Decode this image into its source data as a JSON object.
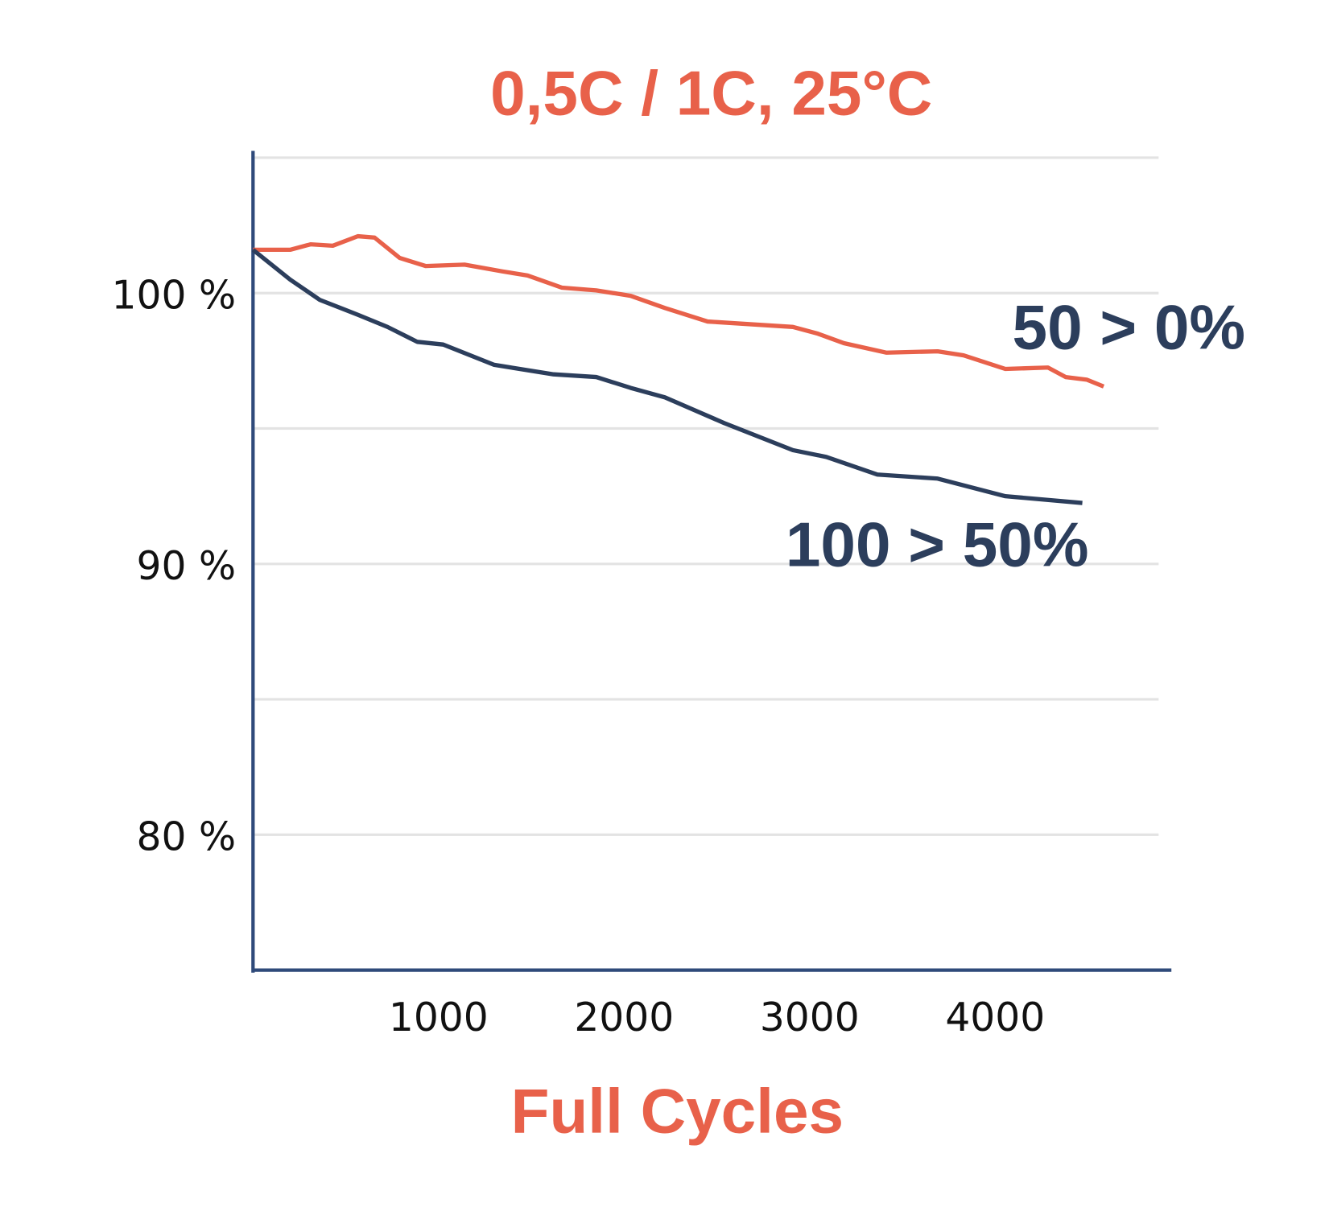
{
  "chart_data": {
    "type": "line",
    "title": "0,5C / 1C, 25°C",
    "x_label": "Full Cycles",
    "xlim": [
      0,
      4950
    ],
    "ylim": [
      75,
      105
    ],
    "xticks": [
      1000,
      2000,
      3000,
      4000
    ],
    "yticks": [
      {
        "value": 80,
        "label": "80 %"
      },
      {
        "value": 90,
        "label": "90 %"
      },
      {
        "value": 100,
        "label": "100 %"
      }
    ],
    "minor_yticks": [
      85,
      95,
      105
    ],
    "grid": true,
    "axis_color": "#2f4a7a",
    "series": [
      {
        "name": "50 > 0%",
        "color": "#e8614a",
        "x": [
          0,
          200,
          310,
          430,
          565,
          655,
          790,
          930,
          1140,
          1345,
          1480,
          1665,
          1850,
          2035,
          2220,
          2450,
          2680,
          2910,
          3045,
          3185,
          3415,
          3690,
          3830,
          4055,
          4285,
          4380,
          4495,
          4585
        ],
        "values": [
          101.6,
          101.6,
          101.8,
          101.75,
          102.1,
          102.05,
          101.3,
          101.0,
          101.05,
          100.8,
          100.65,
          100.2,
          100.1,
          99.9,
          99.45,
          98.95,
          98.85,
          98.75,
          98.5,
          98.15,
          97.8,
          97.85,
          97.7,
          97.2,
          97.25,
          96.9,
          96.8,
          96.55
        ]
      },
      {
        "name": "100 > 50%",
        "color": "#2c3e5c",
        "x": [
          0,
          200,
          360,
          565,
          725,
          885,
          1025,
          1300,
          1620,
          1850,
          2035,
          2220,
          2540,
          2910,
          3090,
          3365,
          3690,
          4055,
          4470
        ],
        "values": [
          101.6,
          100.5,
          99.75,
          99.2,
          98.75,
          98.2,
          98.1,
          97.35,
          97.0,
          96.9,
          96.5,
          96.15,
          95.2,
          94.2,
          93.95,
          93.3,
          93.15,
          92.5,
          92.25
        ]
      }
    ]
  }
}
